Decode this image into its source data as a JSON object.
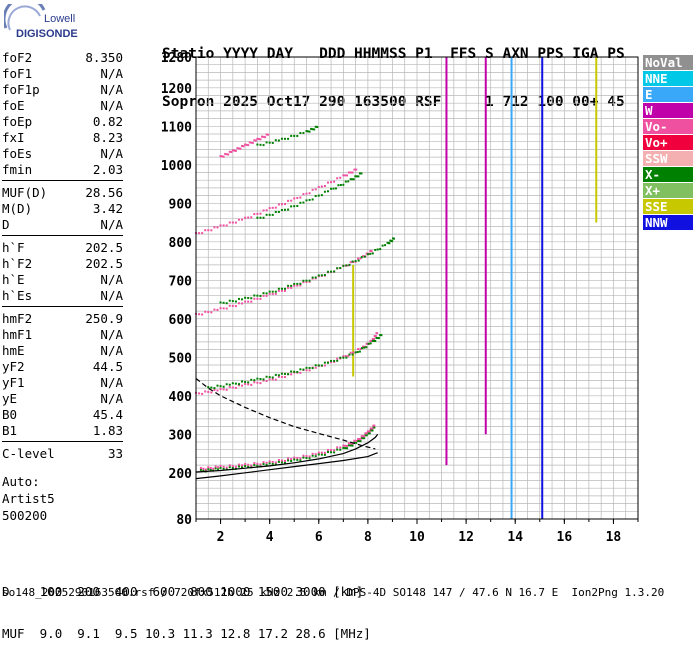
{
  "logo": {
    "line1": "Lowell",
    "line2": "DIGISONDE"
  },
  "header": {
    "line1": "Statio YYYY DAY   DDD HHMMSS P1  FFS S AXN PPS IGA PS",
    "line2": "Sopron 2025 Oct17 290 163500 RSF     1 712 100 00+ 45"
  },
  "params": [
    [
      {
        "label": "foF2",
        "value": "8.350"
      },
      {
        "label": "foF1",
        "value": "N/A"
      },
      {
        "label": "foF1p",
        "value": "N/A"
      },
      {
        "label": "foE",
        "value": "N/A"
      },
      {
        "label": "foEp",
        "value": "0.82"
      },
      {
        "label": "fxI",
        "value": "8.23"
      },
      {
        "label": "foEs",
        "value": "N/A"
      },
      {
        "label": "fmin",
        "value": "2.03"
      }
    ],
    [
      {
        "label": "MUF(D)",
        "value": "28.56"
      },
      {
        "label": "M(D)",
        "value": "3.42"
      },
      {
        "label": "D",
        "value": "N/A"
      }
    ],
    [
      {
        "label": "h`F",
        "value": "202.5"
      },
      {
        "label": "h`F2",
        "value": "202.5"
      },
      {
        "label": "h`E",
        "value": "N/A"
      },
      {
        "label": "h`Es",
        "value": "N/A"
      }
    ],
    [
      {
        "label": "hmF2",
        "value": "250.9"
      },
      {
        "label": "hmF1",
        "value": "N/A"
      },
      {
        "label": "hmE",
        "value": "N/A"
      },
      {
        "label": "yF2",
        "value": "44.5"
      },
      {
        "label": "yF1",
        "value": "N/A"
      },
      {
        "label": "yE",
        "value": "N/A"
      },
      {
        "label": "B0",
        "value": "45.4"
      },
      {
        "label": "B1",
        "value": "1.83"
      }
    ],
    [
      {
        "label": "C-level",
        "value": "33"
      }
    ]
  ],
  "auto": {
    "line1": "Auto:",
    "line2": "Artist5",
    "line3": "500200"
  },
  "legend": [
    {
      "label": "NoVal",
      "color": "#909090"
    },
    {
      "label": "NNE",
      "color": "#00c8e6"
    },
    {
      "label": "E",
      "color": "#3aa8f8"
    },
    {
      "label": "W",
      "color": "#c000a8"
    },
    {
      "label": "Vo-",
      "color": "#f050a0"
    },
    {
      "label": "Vo+",
      "color": "#f0003c"
    },
    {
      "label": "SSW",
      "color": "#f4b0b0"
    },
    {
      "label": "X-",
      "color": "#008000"
    },
    {
      "label": "X+",
      "color": "#80c060"
    },
    {
      "label": "SSE",
      "color": "#c8c800"
    },
    {
      "label": "NNW",
      "color": "#1010e0"
    }
  ],
  "chart_data": {
    "type": "scatter",
    "title": "",
    "xlabel": "",
    "ylabel": "",
    "xlim": [
      1.0,
      19.0
    ],
    "ylim": [
      80,
      1280
    ],
    "x_ticks": [
      "2",
      "4",
      "6",
      "8",
      "10",
      "12",
      "14",
      "16",
      "18"
    ],
    "y_ticks": [
      "80",
      "200",
      "300",
      "400",
      "500",
      "600",
      "700",
      "800",
      "900",
      "1000",
      "1100",
      "1200",
      "1280"
    ],
    "grid": true,
    "traces": [
      {
        "name": "",
        "color": "#008000",
        "points": [
          [
            1.2,
            205
          ],
          [
            2,
            210
          ],
          [
            3,
            215
          ],
          [
            4,
            222
          ],
          [
            5,
            232
          ],
          [
            6,
            245
          ],
          [
            7,
            262
          ],
          [
            7.6,
            280
          ],
          [
            8,
            300
          ],
          [
            8.3,
            320
          ]
        ]
      },
      {
        "name": "",
        "color": "#f050a0",
        "points": [
          [
            1.2,
            210
          ],
          [
            2,
            215
          ],
          [
            3,
            220
          ],
          [
            4,
            227
          ],
          [
            5,
            237
          ],
          [
            6,
            250
          ],
          [
            7,
            268
          ],
          [
            7.6,
            285
          ],
          [
            8,
            305
          ],
          [
            8.3,
            325
          ]
        ]
      },
      {
        "name": "",
        "color": "#f050a0",
        "points": [
          [
            1.0,
            405
          ],
          [
            2,
            415
          ],
          [
            3,
            428
          ],
          [
            4,
            440
          ],
          [
            5,
            458
          ],
          [
            6,
            475
          ],
          [
            7,
            500
          ],
          [
            7.8,
            525
          ],
          [
            8.2,
            545
          ],
          [
            8.4,
            565
          ]
        ]
      },
      {
        "name": "",
        "color": "#008000",
        "points": [
          [
            1.5,
            420
          ],
          [
            2.5,
            430
          ],
          [
            3.5,
            442
          ],
          [
            4.5,
            455
          ],
          [
            5.5,
            470
          ],
          [
            6.5,
            488
          ],
          [
            7.5,
            510
          ],
          [
            8.2,
            540
          ],
          [
            8.6,
            560
          ]
        ]
      },
      {
        "name": "",
        "color": "#f050a0",
        "points": [
          [
            1.0,
            610
          ],
          [
            2,
            625
          ],
          [
            3,
            642
          ],
          [
            4,
            662
          ],
          [
            5,
            683
          ],
          [
            6,
            708
          ],
          [
            7,
            735
          ],
          [
            7.8,
            760
          ],
          [
            8.2,
            778
          ]
        ]
      },
      {
        "name": "",
        "color": "#008000",
        "points": [
          [
            2,
            640
          ],
          [
            3,
            652
          ],
          [
            4,
            668
          ],
          [
            5,
            688
          ],
          [
            6,
            710
          ],
          [
            7,
            735
          ],
          [
            8,
            765
          ],
          [
            8.8,
            795
          ],
          [
            9.1,
            810
          ]
        ]
      },
      {
        "name": "",
        "color": "#f050a0",
        "points": [
          [
            1.0,
            820
          ],
          [
            2,
            840
          ],
          [
            3,
            860
          ],
          [
            4,
            885
          ],
          [
            5,
            910
          ],
          [
            6,
            940
          ],
          [
            7,
            970
          ],
          [
            7.6,
            990
          ]
        ]
      },
      {
        "name": "",
        "color": "#008000",
        "points": [
          [
            3.5,
            860
          ],
          [
            4.5,
            880
          ],
          [
            5.5,
            905
          ],
          [
            6.5,
            935
          ],
          [
            7.3,
            960
          ],
          [
            7.8,
            980
          ]
        ]
      },
      {
        "name": "",
        "color": "#f050a0",
        "points": [
          [
            2,
            1020
          ],
          [
            2.5,
            1035
          ],
          [
            3,
            1050
          ],
          [
            3.5,
            1065
          ],
          [
            4,
            1080
          ]
        ]
      },
      {
        "name": "",
        "color": "#008000",
        "points": [
          [
            3.5,
            1050
          ],
          [
            4.5,
            1065
          ],
          [
            5.5,
            1085
          ],
          [
            6,
            1100
          ]
        ]
      }
    ],
    "fitted_curves": [
      {
        "style": "solid",
        "color": "#000000",
        "points": [
          [
            1.0,
            185
          ],
          [
            2,
            192
          ],
          [
            3,
            200
          ],
          [
            4,
            208
          ],
          [
            5,
            216
          ],
          [
            6,
            224
          ],
          [
            7,
            232
          ],
          [
            8,
            242
          ],
          [
            8.3,
            250
          ],
          [
            8.4,
            252
          ]
        ]
      },
      {
        "style": "solid",
        "color": "#000000",
        "points": [
          [
            1.0,
            202
          ],
          [
            2,
            206
          ],
          [
            3,
            212
          ],
          [
            4,
            218
          ],
          [
            5,
            226
          ],
          [
            6,
            236
          ],
          [
            7,
            250
          ],
          [
            7.5,
            262
          ],
          [
            8,
            278
          ],
          [
            8.3,
            292
          ],
          [
            8.4,
            300
          ]
        ]
      },
      {
        "style": "dashed",
        "color": "#000000",
        "points": [
          [
            1.0,
            445
          ],
          [
            1.5,
            420
          ],
          [
            2,
            400
          ],
          [
            3,
            370
          ],
          [
            4,
            343
          ],
          [
            5,
            320
          ],
          [
            6,
            302
          ],
          [
            7,
            285
          ],
          [
            7.8,
            270
          ],
          [
            8.3,
            262
          ]
        ]
      }
    ],
    "vertical_streaks": [
      {
        "x": 11.2,
        "from": 220,
        "to": 1280,
        "color": "#c000a8"
      },
      {
        "x": 12.8,
        "from": 300,
        "to": 1280,
        "color": "#c000a8"
      },
      {
        "x": 13.85,
        "from": 80,
        "to": 1280,
        "color": "#3aa8f8"
      },
      {
        "x": 15.1,
        "from": 80,
        "to": 1280,
        "color": "#1010e0"
      },
      {
        "x": 17.3,
        "from": 850,
        "to": 1280,
        "color": "#c8c800"
      },
      {
        "x": 7.4,
        "from": 450,
        "to": 740,
        "color": "#c8c800"
      }
    ]
  },
  "muf_table": {
    "d_label": "D",
    "d_values": [
      "100",
      "200",
      "400",
      "600",
      "800",
      "1000",
      "1500",
      "3000"
    ],
    "d_unit": "[km]",
    "muf_label": "MUF",
    "muf_values": [
      "9.0",
      "9.1",
      "9.5",
      "10.3",
      "11.3",
      "12.8",
      "17.2",
      "28.6"
    ],
    "muf_unit": "[MHz]"
  },
  "footer": "so148_2025290163500.rsf / 720fx512h 25 kHz 2.5 km / DPS-4D SO148 147 / 47.6 N 16.7 E  Ion2Png 1.3.20"
}
